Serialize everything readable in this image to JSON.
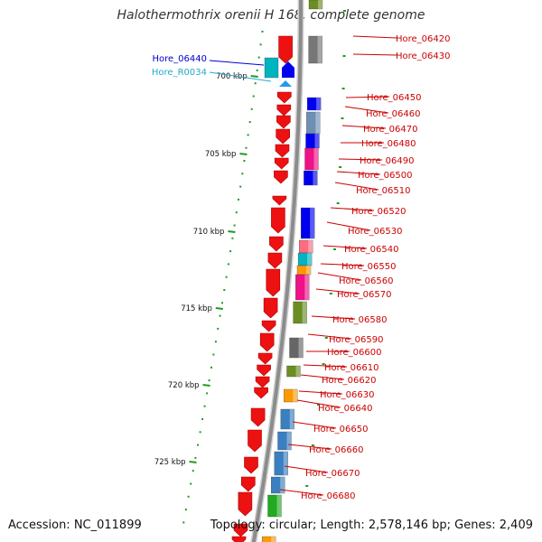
{
  "title": "Halothermothrix orenii H 168, complete genome",
  "accession_text": "Accession: NC_011899",
  "summary_text": "Topology: circular; Length: 2,578,146 bp; Genes: 2,409",
  "colors": {
    "cds_red": "#ee1111",
    "backbone": "#8c8c8c",
    "tick_green": "#229922",
    "label_red": "#cc0000",
    "label_blue": "#0000cc",
    "label_cyan": "#22aacc"
  },
  "kbp_markers": [
    "700 kbp",
    "705 kbp",
    "710 kbp",
    "715 kbp",
    "720 kbp",
    "725 kbp"
  ],
  "left_labels": [
    {
      "text": "Hore_06440",
      "color": "#0000cc"
    },
    {
      "text": "Hore_R0034",
      "color": "#22aacc"
    }
  ],
  "right_labels": [
    "Hore_06420",
    "Hore_06430",
    "Hore_06450",
    "Hore_06460",
    "Hore_06470",
    "Hore_06480",
    "Hore_06490",
    "Hore_06500",
    "Hore_06510",
    "Hore_06520",
    "Hore_06530",
    "Hore_06540",
    "Hore_06550",
    "Hore_06560",
    "Hore_06570",
    "Hore_06580",
    "Hore_06590",
    "Hore_06600",
    "Hore_06610",
    "Hore_06620",
    "Hore_06630",
    "Hore_06640",
    "Hore_06650",
    "Hore_06660",
    "Hore_06670",
    "Hore_06680"
  ]
}
